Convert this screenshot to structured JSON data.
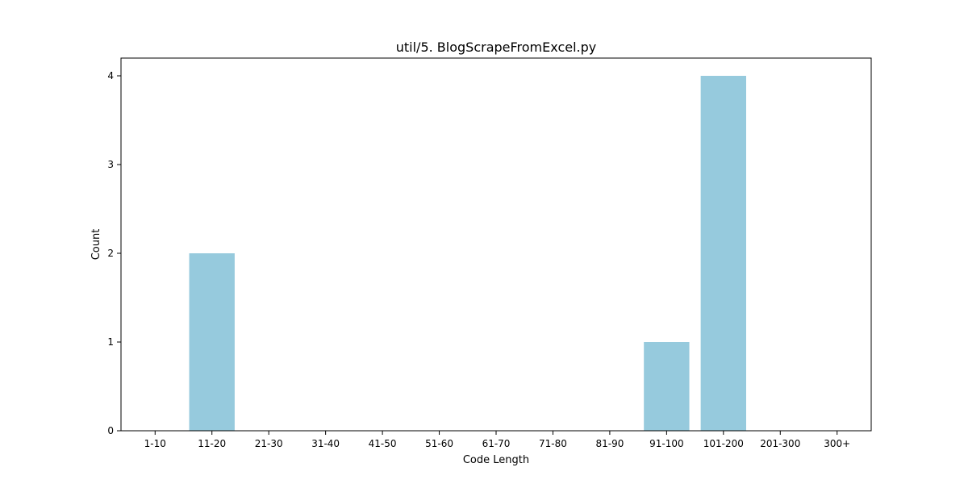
{
  "chart_data": {
    "type": "bar",
    "title": "util/5. BlogScrapeFromExcel.py",
    "xlabel": "Code Length",
    "ylabel": "Count",
    "categories": [
      "1-10",
      "11-20",
      "21-30",
      "31-40",
      "41-50",
      "51-60",
      "61-70",
      "71-80",
      "81-90",
      "91-100",
      "101-200",
      "201-300",
      "300+"
    ],
    "values": [
      0,
      2,
      0,
      0,
      0,
      0,
      0,
      0,
      0,
      1,
      4,
      0,
      0
    ],
    "ylim": [
      0,
      4.2
    ],
    "yticks": [
      0,
      1,
      2,
      3,
      4
    ],
    "bar_color": "#96cadd",
    "grid": false,
    "legend": "none"
  }
}
